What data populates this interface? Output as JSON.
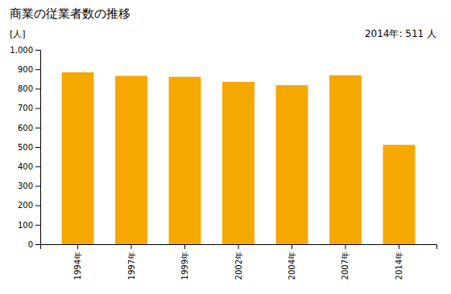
{
  "chart_data": {
    "type": "bar",
    "title": "商業の従業者数の推移",
    "ylabel": "[人]",
    "annotation": "2014年: 511 人",
    "categories": [
      "1994年",
      "1997年",
      "1999年",
      "2002年",
      "2004年",
      "2007年",
      "2014年"
    ],
    "values": [
      884,
      866,
      861,
      835,
      818,
      869,
      511
    ],
    "color": "#F5A800",
    "ylim": [
      0,
      1000
    ],
    "yticks": [
      0,
      100,
      200,
      300,
      400,
      500,
      600,
      700,
      800,
      900,
      {
        "value": 1000,
        "label": "1,000"
      }
    ],
    "grid": false
  }
}
